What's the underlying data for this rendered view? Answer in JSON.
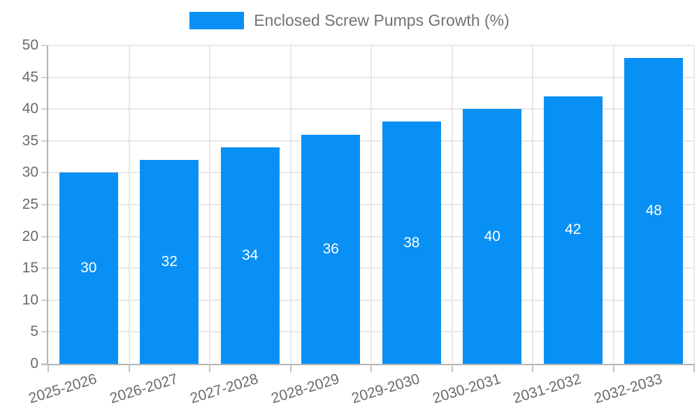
{
  "legend": {
    "label": "Enclosed Screw Pumps Growth (%)"
  },
  "chart_data": {
    "type": "bar",
    "title": "Enclosed Screw Pumps Growth (%)",
    "categories": [
      "2025-2026",
      "2026-2027",
      "2027-2028",
      "2028-2029",
      "2029-2030",
      "2030-2031",
      "2031-2032",
      "2032-2033"
    ],
    "values": [
      30,
      32,
      34,
      36,
      38,
      40,
      42,
      48
    ],
    "xlabel": "",
    "ylabel": "",
    "ylim": [
      0,
      50
    ],
    "ytick_step": 5,
    "grid": true,
    "legend_position": "top",
    "bar_color": "#0990f5",
    "value_label_color": "#ffffff",
    "axis_text_color": "#6b6b6b",
    "grid_color": "#e8e8e8",
    "axis_line_color": "#b3b3b3",
    "background_color": "#ffffff"
  }
}
